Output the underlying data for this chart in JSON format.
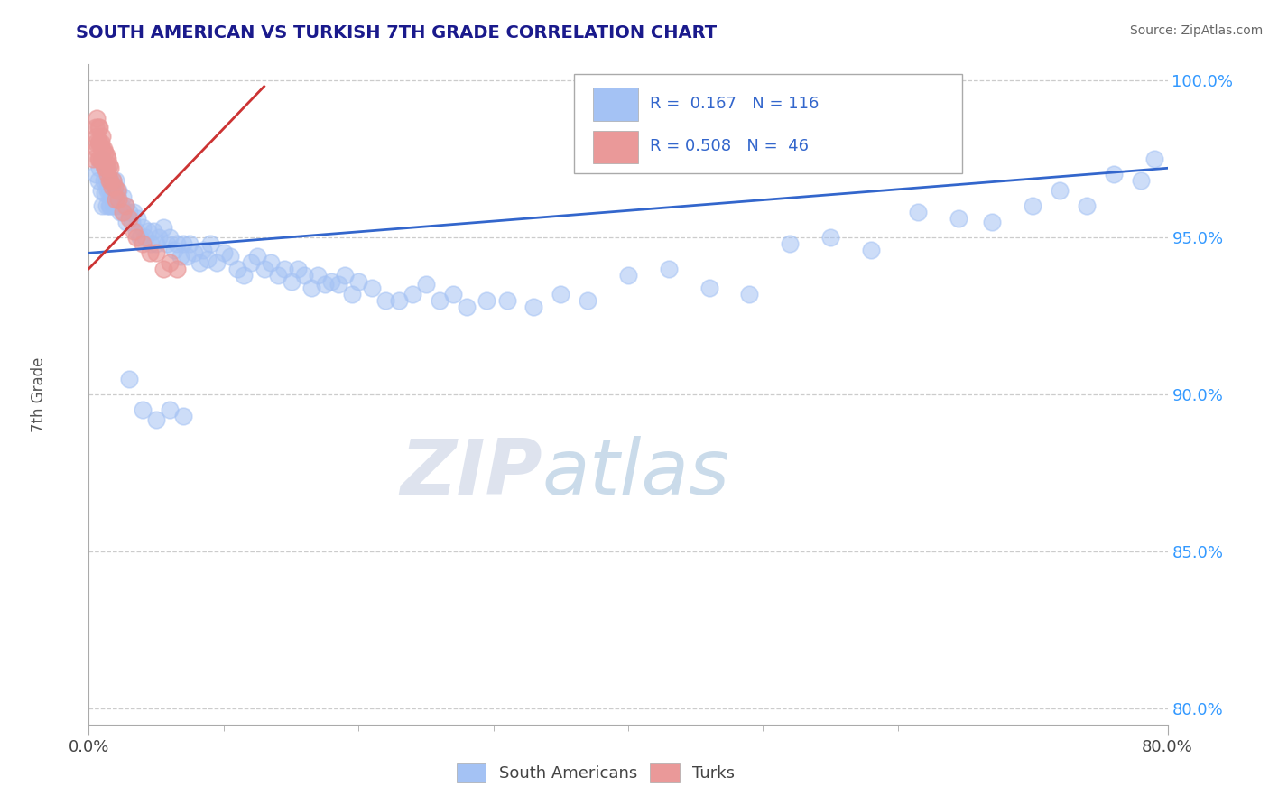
{
  "title": "SOUTH AMERICAN VS TURKISH 7TH GRADE CORRELATION CHART",
  "source": "Source: ZipAtlas.com",
  "ylabel": "7th Grade",
  "xlim": [
    0.0,
    0.8
  ],
  "ylim": [
    0.795,
    1.005
  ],
  "ytick_labels": [
    "80.0%",
    "85.0%",
    "90.0%",
    "95.0%",
    "100.0%"
  ],
  "ytick_vals": [
    0.8,
    0.85,
    0.9,
    0.95,
    1.0
  ],
  "xtick_vals": [
    0.0,
    0.8
  ],
  "xtick_labels": [
    "0.0%",
    "80.0%"
  ],
  "blue_R": 0.167,
  "blue_N": 116,
  "pink_R": 0.508,
  "pink_N": 46,
  "blue_color": "#a4c2f4",
  "pink_color": "#ea9999",
  "blue_line_color": "#3366cc",
  "pink_line_color": "#cc3333",
  "legend_blue_label": "South Americans",
  "legend_pink_label": "Turks",
  "watermark_zip": "ZIP",
  "watermark_atlas": "atlas",
  "blue_line_x0": 0.0,
  "blue_line_y0": 0.945,
  "blue_line_x1": 0.8,
  "blue_line_y1": 0.972,
  "pink_line_x0": 0.0,
  "pink_line_y0": 0.94,
  "pink_line_x1": 0.13,
  "pink_line_y1": 0.998,
  "blue_scatter_x": [
    0.005,
    0.007,
    0.008,
    0.009,
    0.01,
    0.01,
    0.011,
    0.012,
    0.012,
    0.013,
    0.013,
    0.014,
    0.014,
    0.015,
    0.015,
    0.015,
    0.016,
    0.016,
    0.017,
    0.017,
    0.018,
    0.018,
    0.019,
    0.02,
    0.02,
    0.021,
    0.022,
    0.023,
    0.024,
    0.025,
    0.026,
    0.027,
    0.028,
    0.03,
    0.032,
    0.033,
    0.035,
    0.036,
    0.038,
    0.04,
    0.042,
    0.044,
    0.046,
    0.048,
    0.05,
    0.052,
    0.055,
    0.058,
    0.06,
    0.063,
    0.065,
    0.068,
    0.07,
    0.073,
    0.075,
    0.078,
    0.082,
    0.085,
    0.088,
    0.09,
    0.095,
    0.1,
    0.105,
    0.11,
    0.115,
    0.12,
    0.125,
    0.13,
    0.135,
    0.14,
    0.145,
    0.15,
    0.155,
    0.16,
    0.165,
    0.17,
    0.175,
    0.18,
    0.185,
    0.19,
    0.195,
    0.2,
    0.21,
    0.22,
    0.23,
    0.24,
    0.25,
    0.26,
    0.27,
    0.28,
    0.295,
    0.31,
    0.33,
    0.35,
    0.37,
    0.4,
    0.43,
    0.46,
    0.49,
    0.52,
    0.55,
    0.58,
    0.615,
    0.645,
    0.67,
    0.7,
    0.72,
    0.74,
    0.76,
    0.78,
    0.79,
    0.03,
    0.04,
    0.05,
    0.06,
    0.07
  ],
  "blue_scatter_y": [
    0.97,
    0.968,
    0.972,
    0.965,
    0.96,
    0.975,
    0.968,
    0.964,
    0.972,
    0.96,
    0.968,
    0.965,
    0.972,
    0.96,
    0.968,
    0.965,
    0.96,
    0.968,
    0.965,
    0.963,
    0.96,
    0.968,
    0.965,
    0.96,
    0.968,
    0.963,
    0.965,
    0.958,
    0.96,
    0.963,
    0.958,
    0.96,
    0.955,
    0.958,
    0.955,
    0.958,
    0.952,
    0.956,
    0.95,
    0.953,
    0.95,
    0.952,
    0.948,
    0.952,
    0.948,
    0.95,
    0.953,
    0.948,
    0.95,
    0.946,
    0.948,
    0.944,
    0.948,
    0.944,
    0.948,
    0.945,
    0.942,
    0.946,
    0.943,
    0.948,
    0.942,
    0.945,
    0.944,
    0.94,
    0.938,
    0.942,
    0.944,
    0.94,
    0.942,
    0.938,
    0.94,
    0.936,
    0.94,
    0.938,
    0.934,
    0.938,
    0.935,
    0.936,
    0.935,
    0.938,
    0.932,
    0.936,
    0.934,
    0.93,
    0.93,
    0.932,
    0.935,
    0.93,
    0.932,
    0.928,
    0.93,
    0.93,
    0.928,
    0.932,
    0.93,
    0.938,
    0.94,
    0.934,
    0.932,
    0.948,
    0.95,
    0.946,
    0.958,
    0.956,
    0.955,
    0.96,
    0.965,
    0.96,
    0.97,
    0.968,
    0.975,
    0.905,
    0.895,
    0.892,
    0.895,
    0.893
  ],
  "pink_scatter_x": [
    0.003,
    0.005,
    0.005,
    0.006,
    0.006,
    0.006,
    0.007,
    0.007,
    0.007,
    0.008,
    0.008,
    0.008,
    0.009,
    0.009,
    0.01,
    0.01,
    0.01,
    0.011,
    0.011,
    0.012,
    0.012,
    0.013,
    0.013,
    0.014,
    0.014,
    0.015,
    0.015,
    0.016,
    0.016,
    0.017,
    0.018,
    0.019,
    0.02,
    0.021,
    0.022,
    0.025,
    0.027,
    0.03,
    0.033,
    0.035,
    0.04,
    0.045,
    0.05,
    0.055,
    0.06,
    0.065
  ],
  "pink_scatter_y": [
    0.975,
    0.98,
    0.985,
    0.978,
    0.982,
    0.988,
    0.975,
    0.98,
    0.985,
    0.975,
    0.98,
    0.985,
    0.975,
    0.98,
    0.975,
    0.978,
    0.982,
    0.973,
    0.978,
    0.972,
    0.977,
    0.972,
    0.976,
    0.97,
    0.975,
    0.968,
    0.973,
    0.968,
    0.972,
    0.966,
    0.968,
    0.966,
    0.962,
    0.965,
    0.962,
    0.958,
    0.96,
    0.956,
    0.952,
    0.95,
    0.948,
    0.945,
    0.945,
    0.94,
    0.942,
    0.94
  ]
}
